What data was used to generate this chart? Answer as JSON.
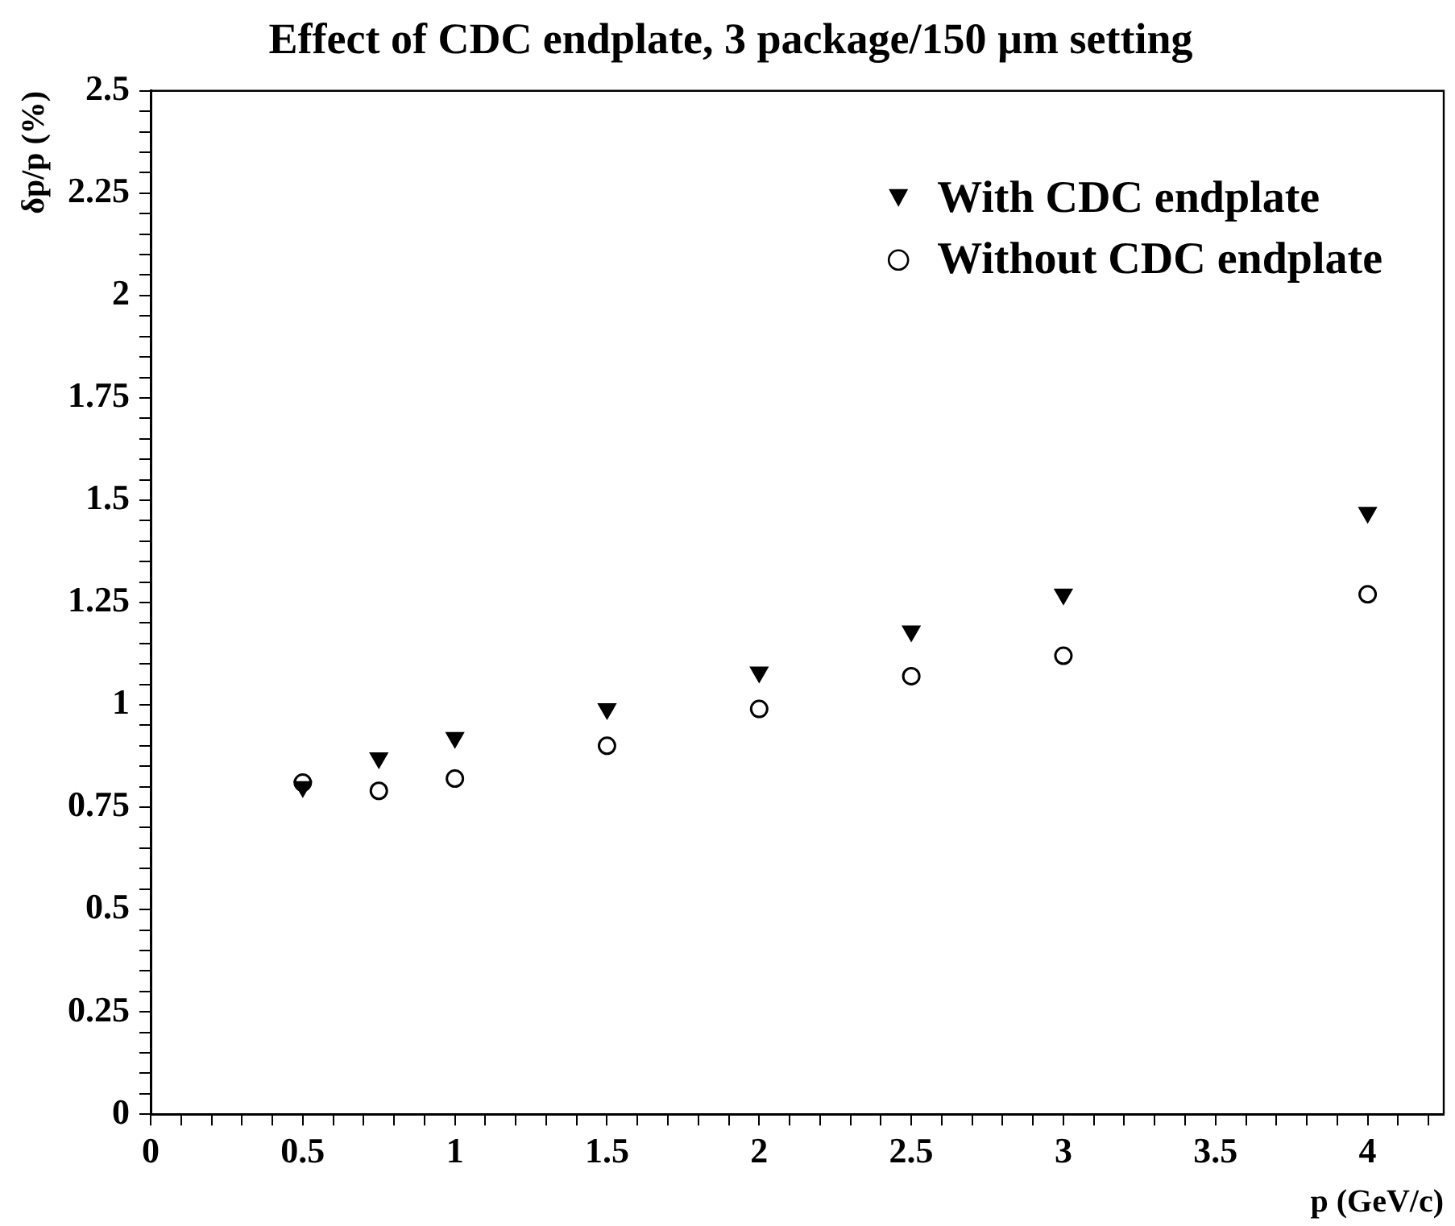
{
  "chart_data": {
    "type": "scatter",
    "title": "Effect of CDC endplate, 3 package/150 µm setting",
    "xlabel": "p (GeV/c)",
    "ylabel": "δp/p (%)",
    "x": [
      0.5,
      0.75,
      1,
      1.5,
      2,
      2.5,
      3,
      4
    ],
    "series": [
      {
        "name": "With CDC endplate",
        "color": "#000000",
        "marker": "triangle",
        "values": [
          0.8,
          0.87,
          0.92,
          0.99,
          1.08,
          1.18,
          1.27,
          1.47
        ]
      },
      {
        "name": "Without CDC endplate",
        "color": "#000000",
        "marker": "circle",
        "values": [
          0.81,
          0.79,
          0.82,
          0.9,
          0.99,
          1.07,
          1.12,
          1.27
        ]
      }
    ],
    "xlim": [
      0,
      4.25
    ],
    "xticks": [
      0,
      {
        "value": 0.1,
        "label": null
      },
      {
        "value": 0.2,
        "label": null
      },
      {
        "value": 0.3,
        "label": null
      },
      {
        "value": 0.4,
        "label": null
      },
      0.5,
      {
        "value": 0.6,
        "label": null
      },
      {
        "value": 0.7,
        "label": null
      },
      {
        "value": 0.8,
        "label": null
      },
      {
        "value": 0.9,
        "label": null
      },
      1,
      {
        "value": 1.1,
        "label": null
      },
      {
        "value": 1.2,
        "label": null
      },
      {
        "value": 1.3,
        "label": null
      },
      {
        "value": 1.4,
        "label": null
      },
      1.5,
      {
        "value": 1.6,
        "label": null
      },
      {
        "value": 1.7,
        "label": null
      },
      {
        "value": 1.8,
        "label": null
      },
      {
        "value": 1.9,
        "label": null
      },
      2,
      {
        "value": 2.1,
        "label": null
      },
      {
        "value": 2.2,
        "label": null
      },
      {
        "value": 2.3,
        "label": null
      },
      {
        "value": 2.4,
        "label": null
      },
      2.5,
      {
        "value": 2.6,
        "label": null
      },
      {
        "value": 2.7,
        "label": null
      },
      {
        "value": 2.8,
        "label": null
      },
      {
        "value": 2.9,
        "label": null
      },
      3,
      {
        "value": 3.1,
        "label": null
      },
      {
        "value": 3.2,
        "label": null
      },
      {
        "value": 3.3,
        "label": null
      },
      {
        "value": 3.4,
        "label": null
      },
      3.5,
      {
        "value": 3.6,
        "label": null
      },
      {
        "value": 3.7,
        "label": null
      },
      {
        "value": 3.8,
        "label": null
      },
      {
        "value": 3.9,
        "label": null
      },
      4,
      {
        "value": 4.1,
        "label": null
      },
      {
        "value": 4.2,
        "label": null
      }
    ],
    "ylim": [
      0,
      2.5
    ],
    "yticks": [
      0,
      {
        "value": 0.05,
        "label": null
      },
      {
        "value": 0.1,
        "label": null
      },
      {
        "value": 0.15,
        "label": null
      },
      {
        "value": 0.2,
        "label": null
      },
      0.25,
      {
        "value": 0.3,
        "label": null
      },
      {
        "value": 0.35,
        "label": null
      },
      {
        "value": 0.4,
        "label": null
      },
      {
        "value": 0.45,
        "label": null
      },
      0.5,
      {
        "value": 0.55,
        "label": null
      },
      {
        "value": 0.6,
        "label": null
      },
      {
        "value": 0.65,
        "label": null
      },
      {
        "value": 0.7,
        "label": null
      },
      0.75,
      {
        "value": 0.8,
        "label": null
      },
      {
        "value": 0.85,
        "label": null
      },
      {
        "value": 0.9,
        "label": null
      },
      {
        "value": 0.95,
        "label": null
      },
      1,
      {
        "value": 1.05,
        "label": null
      },
      {
        "value": 1.1,
        "label": null
      },
      {
        "value": 1.15,
        "label": null
      },
      {
        "value": 1.2,
        "label": null
      },
      1.25,
      {
        "value": 1.3,
        "label": null
      },
      {
        "value": 1.35,
        "label": null
      },
      {
        "value": 1.4,
        "label": null
      },
      {
        "value": 1.45,
        "label": null
      },
      1.5,
      {
        "value": 1.55,
        "label": null
      },
      {
        "value": 1.6,
        "label": null
      },
      {
        "value": 1.65,
        "label": null
      },
      {
        "value": 1.7,
        "label": null
      },
      1.75,
      {
        "value": 1.8,
        "label": null
      },
      {
        "value": 1.85,
        "label": null
      },
      {
        "value": 1.9,
        "label": null
      },
      {
        "value": 1.95,
        "label": null
      },
      2,
      {
        "value": 2.05,
        "label": null
      },
      {
        "value": 2.1,
        "label": null
      },
      {
        "value": 2.15,
        "label": null
      },
      {
        "value": 2.2,
        "label": null
      },
      2.25,
      {
        "value": 2.3,
        "label": null
      },
      {
        "value": 2.35,
        "label": null
      },
      {
        "value": 2.4,
        "label": null
      },
      {
        "value": 2.45,
        "label": null
      },
      2.5
    ],
    "grid": false,
    "legend": "top right"
  }
}
